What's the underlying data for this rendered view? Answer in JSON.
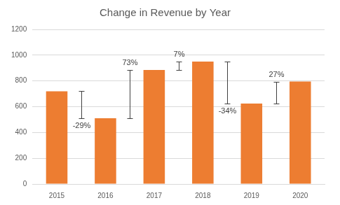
{
  "chart_data": {
    "type": "bar",
    "title": "Change in Revenue by Year",
    "categories": [
      "2015",
      "2016",
      "2017",
      "2018",
      "2019",
      "2020"
    ],
    "values": [
      720,
      510,
      885,
      950,
      625,
      795
    ],
    "color": "#ed7d31",
    "ylim": [
      0,
      1200
    ],
    "yticks": [
      0,
      200,
      400,
      600,
      800,
      1000,
      1200
    ],
    "grid": true,
    "changes": {
      "values": [
        -29,
        73,
        7,
        -34,
        27
      ],
      "value_labels": [
        "-29%",
        "73%",
        "7%",
        "-34%",
        "27%"
      ]
    }
  }
}
